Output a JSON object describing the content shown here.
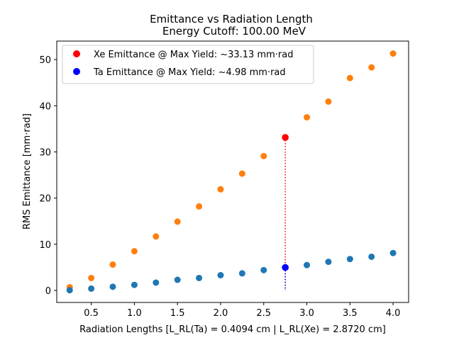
{
  "chart_data": {
    "type": "scatter",
    "title": "Emittance vs Radiation Length",
    "subtitle": "Energy Cutoff: 100.00 MeV",
    "xlabel": "Radiation Lengths [L_RL(Ta) = 0.4094 cm | L_RL(Xe) = 2.8720 cm]",
    "ylabel": "RMS Emittance [mm·rad]",
    "xlim": [
      0.1,
      4.18
    ],
    "ylim": [
      -2.6,
      54
    ],
    "xticks": [
      "0.5",
      "1.0",
      "1.5",
      "2.0",
      "2.5",
      "3.0",
      "3.5",
      "4.0"
    ],
    "yticks": [
      "0",
      "10",
      "20",
      "30",
      "40",
      "50"
    ],
    "grid": false,
    "legend_position": "top-left",
    "series": [
      {
        "name": "Xe",
        "color": "#ff7f0e",
        "x": [
          0.25,
          0.5,
          0.75,
          1.0,
          1.25,
          1.5,
          1.75,
          2.0,
          2.25,
          2.5,
          3.0,
          3.25,
          3.5,
          3.75,
          4.0
        ],
        "y": [
          0.7,
          2.7,
          5.6,
          8.5,
          11.7,
          14.9,
          18.2,
          21.9,
          25.3,
          29.1,
          37.5,
          40.9,
          46.0,
          48.3,
          51.3
        ]
      },
      {
        "name": "Ta",
        "color": "#1f77b4",
        "x": [
          0.25,
          0.5,
          0.75,
          1.0,
          1.25,
          1.5,
          1.75,
          2.0,
          2.25,
          2.5,
          3.0,
          3.25,
          3.5,
          3.75,
          4.0
        ],
        "y": [
          0.05,
          0.4,
          0.8,
          1.2,
          1.7,
          2.3,
          2.7,
          3.3,
          3.7,
          4.4,
          5.5,
          6.2,
          6.8,
          7.3,
          8.1
        ]
      }
    ],
    "highlights": [
      {
        "label": "Xe Emittance @ Max Yield: ~33.13 mm·rad",
        "color": "#ff0000",
        "x": 2.75,
        "y": 33.13
      },
      {
        "label": "Ta Emittance @ Max Yield: ~4.98 mm·rad",
        "color": "#0000ff",
        "x": 2.75,
        "y": 4.98
      }
    ]
  }
}
